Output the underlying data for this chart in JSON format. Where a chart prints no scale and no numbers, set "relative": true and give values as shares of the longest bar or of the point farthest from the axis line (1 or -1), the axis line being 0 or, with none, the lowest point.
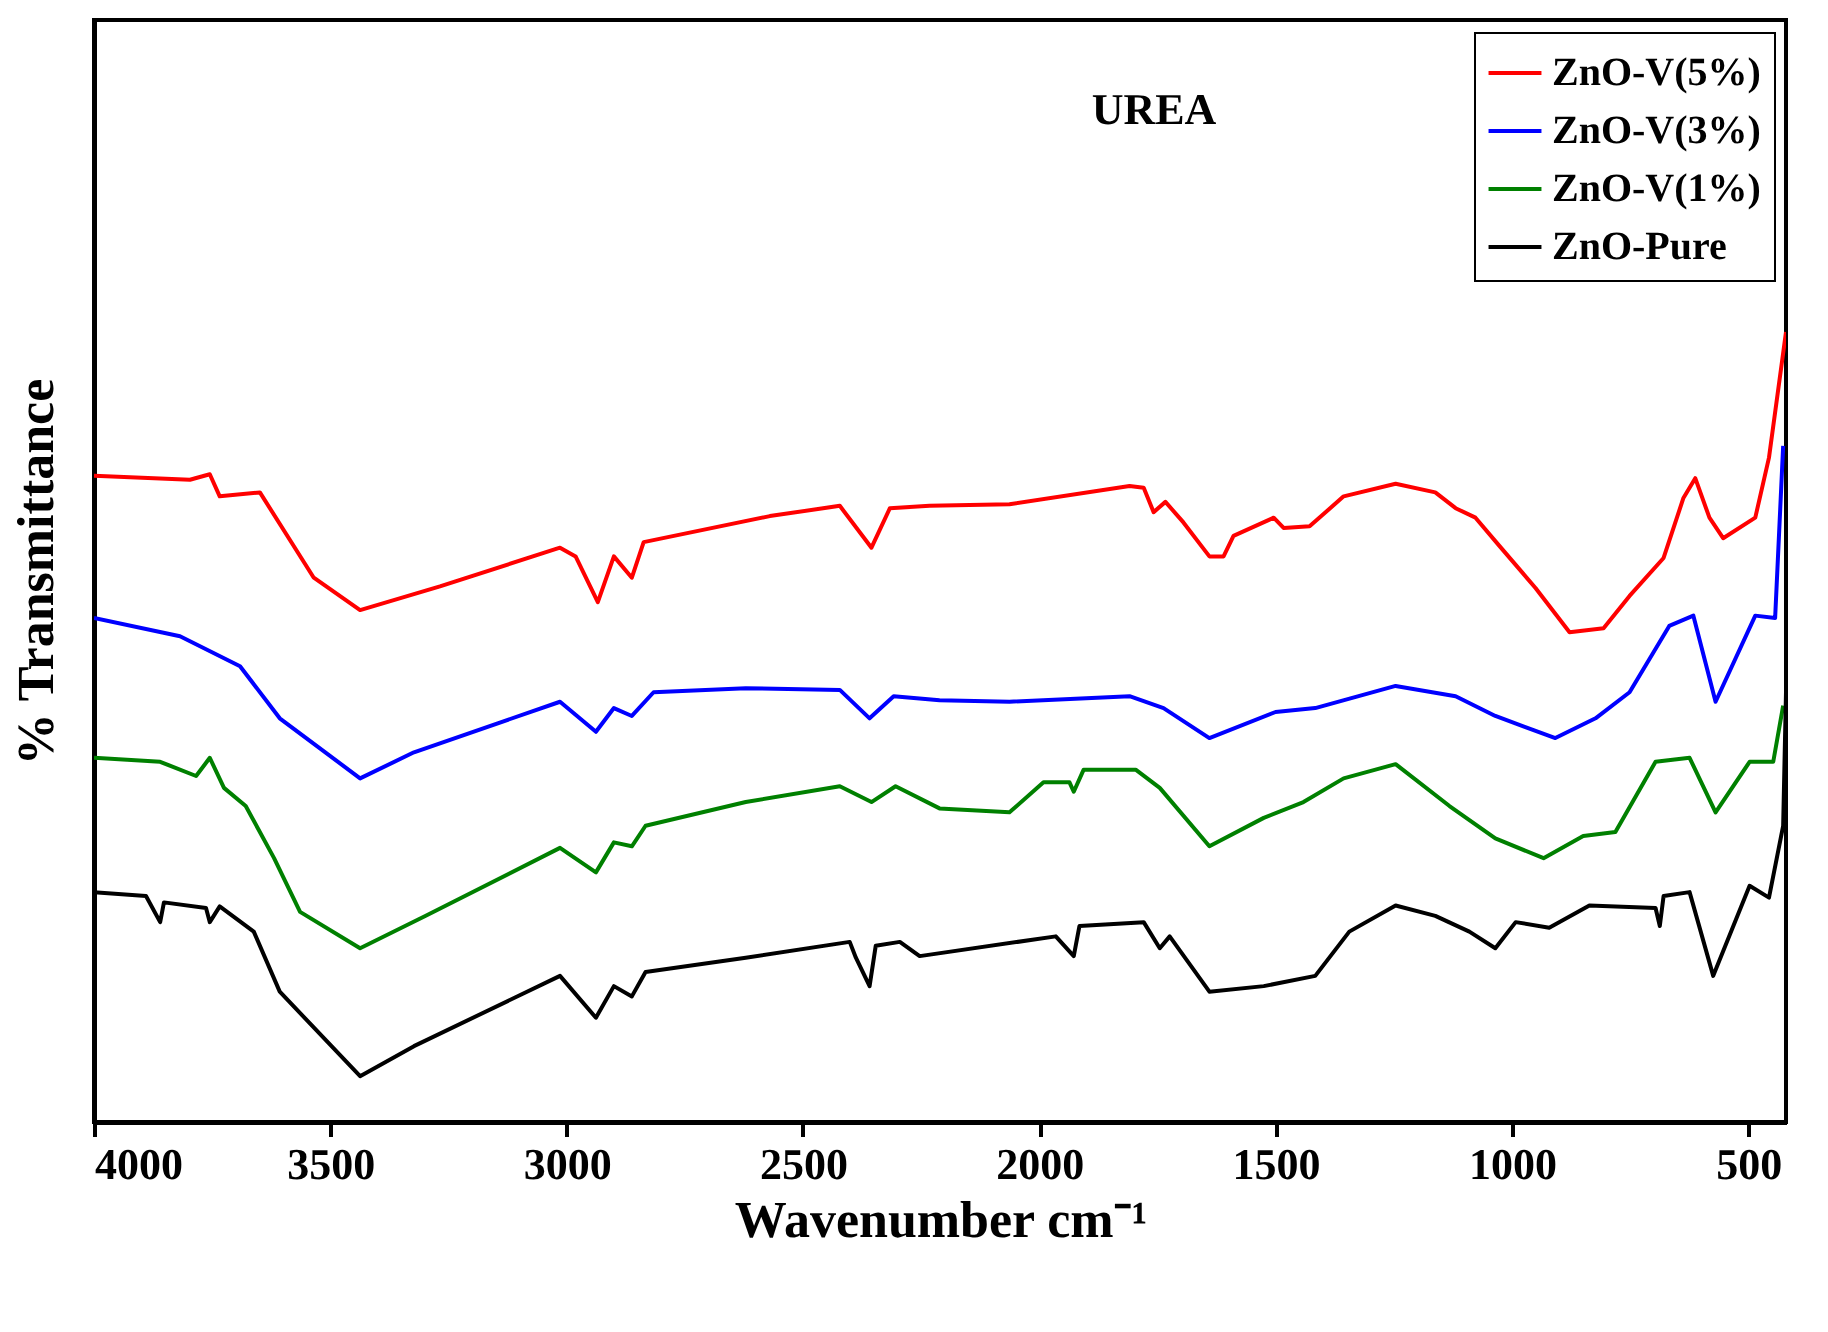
{
  "chart_data": {
    "type": "line",
    "xlabel": "Wavenumber cm⁻¹",
    "ylabel": "% Transmittance",
    "annotations": [
      "UREA"
    ],
    "relative": true,
    "xlim": [
      4000,
      420
    ],
    "xticks": [
      4000,
      3500,
      3000,
      2500,
      2000,
      1500,
      1000,
      500
    ],
    "grid": false,
    "legend": "top right",
    "line_style": "solid",
    "marker": "none",
    "series": [
      {
        "name": "ZnO-V(5%)",
        "color": "#ff0000",
        "x": [
          4000,
          3797,
          3755,
          3734,
          3649,
          3535,
          3437,
          3268,
          3014,
          2981,
          2934,
          2900,
          2862,
          2837,
          2570,
          2422,
          2355,
          2316,
          2232,
          2063,
          1809,
          1779,
          1758,
          1733,
          1695,
          1640,
          1610,
          1589,
          1504,
          1483,
          1428,
          1356,
          1246,
          1162,
          1119,
          1077,
          1026,
          950,
          878,
          806,
          751,
          679,
          637,
          612,
          582,
          553,
          485,
          456,
          420
        ],
        "values": [
          0.818,
          0.813,
          0.82,
          0.792,
          0.797,
          0.689,
          0.648,
          0.678,
          0.727,
          0.716,
          0.658,
          0.716,
          0.689,
          0.734,
          0.767,
          0.78,
          0.727,
          0.777,
          0.78,
          0.782,
          0.805,
          0.803,
          0.772,
          0.785,
          0.759,
          0.716,
          0.716,
          0.742,
          0.765,
          0.752,
          0.754,
          0.792,
          0.808,
          0.797,
          0.777,
          0.765,
          0.729,
          0.676,
          0.62,
          0.625,
          0.666,
          0.714,
          0.79,
          0.815,
          0.765,
          0.739,
          0.765,
          0.841,
          1.0
        ]
      },
      {
        "name": "ZnO-V(3%)",
        "color": "#0000ff",
        "x": [
          4000,
          3818,
          3691,
          3607,
          3437,
          3323,
          3014,
          2938,
          2900,
          2862,
          2816,
          2621,
          2422,
          2359,
          2308,
          2211,
          2063,
          1809,
          1737,
          1640,
          1500,
          1416,
          1246,
          1119,
          1035,
          908,
          823,
          751,
          667,
          616,
          569,
          485,
          443,
          426
        ],
        "values": [
          0.638,
          0.615,
          0.577,
          0.511,
          0.435,
          0.468,
          0.532,
          0.494,
          0.524,
          0.514,
          0.544,
          0.549,
          0.547,
          0.511,
          0.539,
          0.534,
          0.532,
          0.539,
          0.524,
          0.486,
          0.519,
          0.524,
          0.552,
          0.539,
          0.514,
          0.486,
          0.511,
          0.544,
          0.628,
          0.641,
          0.532,
          0.641,
          0.638,
          0.856
        ]
      },
      {
        "name": "ZnO-V(1%)",
        "color": "#008000",
        "x": [
          4000,
          3860,
          3784,
          3755,
          3725,
          3679,
          3619,
          3564,
          3437,
          3298,
          3014,
          2938,
          2900,
          2862,
          2833,
          2621,
          2422,
          2355,
          2304,
          2211,
          2063,
          1991,
          1936,
          1927,
          1906,
          1796,
          1745,
          1640,
          1525,
          1441,
          1356,
          1246,
          1132,
          1035,
          933,
          849,
          781,
          696,
          624,
          569,
          497,
          447,
          426
        ],
        "values": [
          0.461,
          0.456,
          0.438,
          0.461,
          0.423,
          0.4,
          0.334,
          0.266,
          0.22,
          0.261,
          0.347,
          0.316,
          0.354,
          0.349,
          0.375,
          0.405,
          0.425,
          0.405,
          0.425,
          0.397,
          0.392,
          0.43,
          0.43,
          0.418,
          0.446,
          0.446,
          0.423,
          0.349,
          0.385,
          0.405,
          0.435,
          0.453,
          0.4,
          0.359,
          0.334,
          0.362,
          0.367,
          0.456,
          0.461,
          0.392,
          0.456,
          0.456,
          0.527
        ]
      },
      {
        "name": "ZnO-Pure",
        "color": "#000000",
        "x": [
          4000,
          3890,
          3860,
          3852,
          3763,
          3755,
          3734,
          3662,
          3607,
          3437,
          3323,
          3014,
          2938,
          2900,
          2862,
          2833,
          2621,
          2401,
          2388,
          2359,
          2346,
          2295,
          2253,
          1965,
          1927,
          1915,
          1779,
          1745,
          1724,
          1640,
          1525,
          1416,
          1344,
          1246,
          1162,
          1090,
          1035,
          992,
          921,
          836,
          696,
          687,
          679,
          624,
          574,
          497,
          456,
          426,
          420
        ],
        "values": [
          0.291,
          0.286,
          0.253,
          0.278,
          0.271,
          0.253,
          0.273,
          0.241,
          0.165,
          0.058,
          0.096,
          0.185,
          0.132,
          0.172,
          0.159,
          0.19,
          0.208,
          0.228,
          0.208,
          0.172,
          0.223,
          0.228,
          0.21,
          0.235,
          0.21,
          0.248,
          0.253,
          0.22,
          0.235,
          0.165,
          0.172,
          0.185,
          0.241,
          0.274,
          0.261,
          0.241,
          0.22,
          0.253,
          0.246,
          0.274,
          0.271,
          0.248,
          0.286,
          0.291,
          0.185,
          0.299,
          0.284,
          0.375,
          0.544
        ]
      }
    ]
  }
}
